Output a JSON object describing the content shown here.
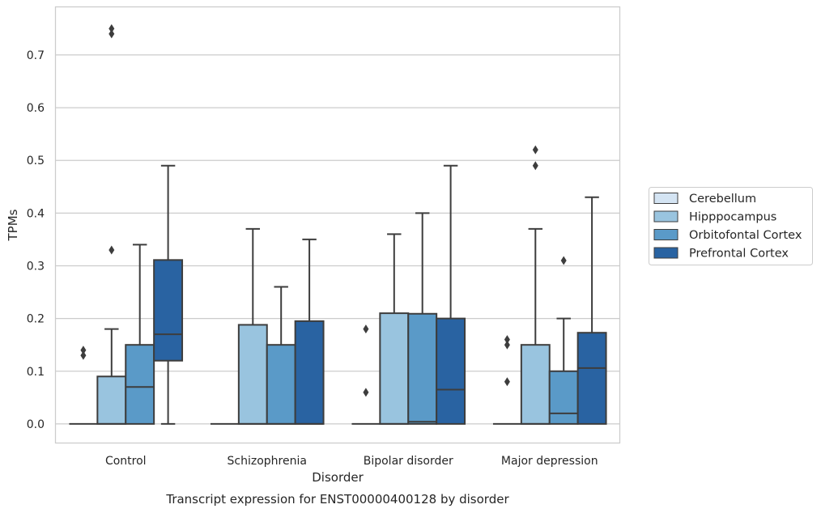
{
  "chart_data": {
    "type": "box",
    "title": "",
    "caption": "Transcript expression for ENST00000400128 by disorder",
    "xlabel": "Disorder",
    "ylabel": "TPMs",
    "ylim": [
      -0.037,
      0.792
    ],
    "yticks": [
      0.0,
      0.1,
      0.2,
      0.3,
      0.4,
      0.5,
      0.6,
      0.7
    ],
    "ytick_labels": [
      "0.0",
      "0.1",
      "0.2",
      "0.3",
      "0.4",
      "0.5",
      "0.6",
      "0.7"
    ],
    "grid": "horizontal",
    "legend_position": "right",
    "categories": [
      "Control",
      "Schizophrenia",
      "Bipolar disorder",
      "Major depression"
    ],
    "series": [
      {
        "name": "Cerebellum",
        "color": "#d4e4f3",
        "boxes": [
          {
            "q1": 0.0,
            "median": 0.0,
            "q3": 0.0,
            "whisker_low": 0.0,
            "whisker_high": 0.0,
            "outliers": [
              0.13,
              0.14
            ]
          },
          {
            "q1": 0.0,
            "median": 0.0,
            "q3": 0.0,
            "whisker_low": 0.0,
            "whisker_high": 0.0,
            "outliers": []
          },
          {
            "q1": 0.0,
            "median": 0.0,
            "q3": 0.0,
            "whisker_low": 0.0,
            "whisker_high": 0.0,
            "outliers": [
              0.06,
              0.18
            ]
          },
          {
            "q1": 0.0,
            "median": 0.0,
            "q3": 0.0,
            "whisker_low": 0.0,
            "whisker_high": 0.0,
            "outliers": [
              0.08,
              0.15,
              0.16
            ]
          }
        ]
      },
      {
        "name": "Hipppocampus",
        "color": "#99c4df",
        "boxes": [
          {
            "q1": 0.0,
            "median": 0.0,
            "q3": 0.09,
            "whisker_low": 0.0,
            "whisker_high": 0.18,
            "outliers": [
              0.33,
              0.74,
              0.75
            ]
          },
          {
            "q1": 0.0,
            "median": 0.0,
            "q3": 0.188,
            "whisker_low": 0.0,
            "whisker_high": 0.37,
            "outliers": []
          },
          {
            "q1": 0.0,
            "median": 0.0,
            "q3": 0.21,
            "whisker_low": 0.0,
            "whisker_high": 0.36,
            "outliers": []
          },
          {
            "q1": 0.0,
            "median": 0.0,
            "q3": 0.15,
            "whisker_low": 0.0,
            "whisker_high": 0.37,
            "outliers": [
              0.49,
              0.52
            ]
          }
        ]
      },
      {
        "name": "Orbitofontal Cortex",
        "color": "#5a9ac8",
        "boxes": [
          {
            "q1": 0.0,
            "median": 0.07,
            "q3": 0.15,
            "whisker_low": 0.0,
            "whisker_high": 0.34,
            "outliers": []
          },
          {
            "q1": 0.0,
            "median": 0.0,
            "q3": 0.15,
            "whisker_low": 0.0,
            "whisker_high": 0.26,
            "outliers": []
          },
          {
            "q1": 0.0,
            "median": 0.004,
            "q3": 0.209,
            "whisker_low": 0.0,
            "whisker_high": 0.4,
            "outliers": []
          },
          {
            "q1": 0.0,
            "median": 0.02,
            "q3": 0.1,
            "whisker_low": 0.0,
            "whisker_high": 0.2,
            "outliers": [
              0.31
            ]
          }
        ]
      },
      {
        "name": "Prefrontal Cortex",
        "color": "#2963a2",
        "boxes": [
          {
            "q1": 0.12,
            "median": 0.17,
            "q3": 0.311,
            "whisker_low": 0.0,
            "whisker_high": 0.49,
            "outliers": []
          },
          {
            "q1": 0.0,
            "median": 0.0,
            "q3": 0.195,
            "whisker_low": 0.0,
            "whisker_high": 0.35,
            "outliers": []
          },
          {
            "q1": 0.0,
            "median": 0.065,
            "q3": 0.2,
            "whisker_low": 0.0,
            "whisker_high": 0.49,
            "outliers": []
          },
          {
            "q1": 0.0,
            "median": 0.106,
            "q3": 0.173,
            "whisker_low": 0.0,
            "whisker_high": 0.43,
            "outliers": []
          }
        ]
      }
    ]
  }
}
